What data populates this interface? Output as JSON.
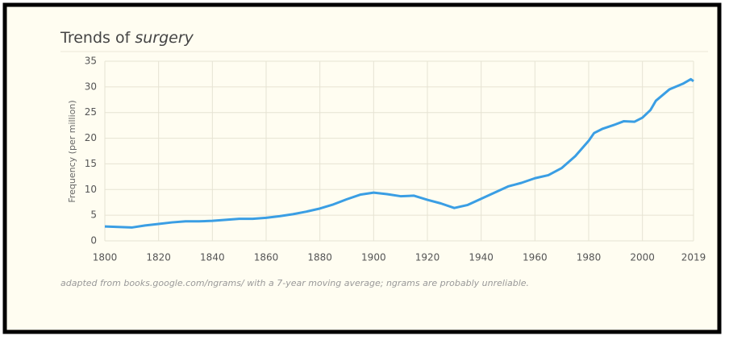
{
  "chart_data": {
    "type": "line",
    "title": "Trends of",
    "title_term": "surgery",
    "y_label": "Frequency (per million)",
    "footnote": "adapted from books.google.com/ngrams/ with a 7-year moving average; ngrams are probably unreliable.",
    "x": [
      1800,
      1805,
      1810,
      1815,
      1820,
      1825,
      1830,
      1835,
      1840,
      1845,
      1850,
      1855,
      1860,
      1865,
      1870,
      1875,
      1880,
      1885,
      1890,
      1895,
      1900,
      1905,
      1910,
      1915,
      1920,
      1925,
      1930,
      1935,
      1940,
      1945,
      1950,
      1955,
      1960,
      1965,
      1970,
      1975,
      1980,
      1982,
      1985,
      1990,
      1993,
      1997,
      2000,
      2003,
      2005,
      2010,
      2015,
      2018,
      2019
    ],
    "series": [
      {
        "name": "surgery",
        "color": "#3a9ee4",
        "values": [
          2.8,
          2.7,
          2.6,
          3.0,
          3.3,
          3.6,
          3.8,
          3.8,
          3.9,
          4.1,
          4.3,
          4.3,
          4.5,
          4.8,
          5.2,
          5.7,
          6.3,
          7.1,
          8.1,
          9.0,
          9.4,
          9.1,
          8.7,
          8.8,
          8.0,
          7.3,
          6.4,
          7.0,
          8.2,
          9.4,
          10.6,
          11.3,
          12.2,
          12.8,
          14.2,
          16.5,
          19.5,
          21.0,
          21.8,
          22.7,
          23.3,
          23.2,
          24.0,
          25.5,
          27.3,
          29.5,
          30.6,
          31.5,
          31.1
        ]
      }
    ],
    "xlim": [
      1800,
      2019
    ],
    "xticks": [
      1800,
      1820,
      1840,
      1860,
      1880,
      1900,
      1920,
      1940,
      1960,
      1980,
      2000,
      2019
    ],
    "ylim": [
      0,
      35
    ],
    "yticks": [
      0,
      5,
      10,
      15,
      20,
      25,
      30,
      35
    ],
    "grid": true
  }
}
